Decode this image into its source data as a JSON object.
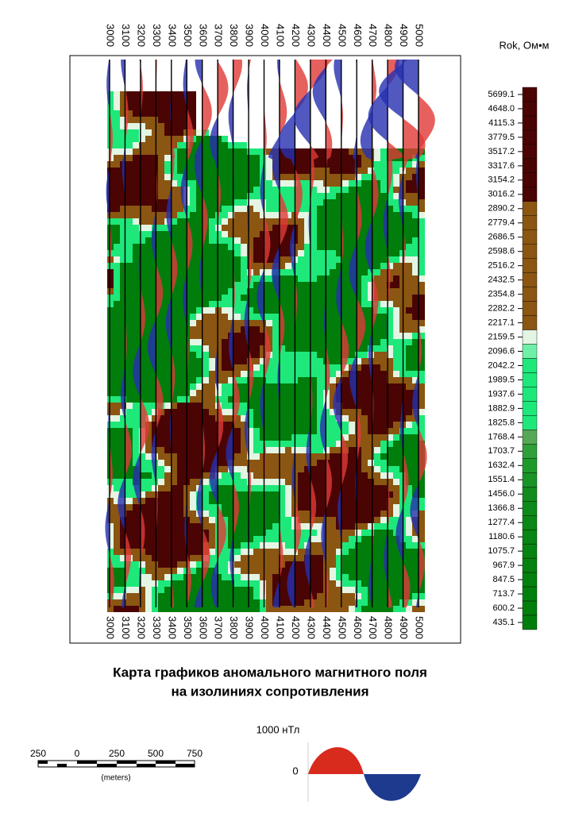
{
  "map": {
    "profiles": [
      "3000",
      "3100",
      "3200",
      "3300",
      "3400",
      "3500",
      "3600",
      "3700",
      "3800",
      "3900",
      "4000",
      "4100",
      "4200",
      "4300",
      "4400",
      "4500",
      "4600",
      "4700",
      "4800",
      "4900",
      "5000"
    ],
    "legend": {
      "title": "Rok, Ом•м",
      "items": [
        {
          "label": "5699.1",
          "color": "#4a0404"
        },
        {
          "label": "4648.0",
          "color": "#4a0404"
        },
        {
          "label": "4115.3",
          "color": "#4a0404"
        },
        {
          "label": "3779.5",
          "color": "#4a0404"
        },
        {
          "label": "3517.2",
          "color": "#4a0404"
        },
        {
          "label": "3317.6",
          "color": "#4a0404"
        },
        {
          "label": "3154.2",
          "color": "#4a0404"
        },
        {
          "label": "3016.2",
          "color": "#4a0404"
        },
        {
          "label": "2890.2",
          "color": "#8b5611"
        },
        {
          "label": "2779.4",
          "color": "#8b5611"
        },
        {
          "label": "2686.5",
          "color": "#8b5611"
        },
        {
          "label": "2598.6",
          "color": "#8b5611"
        },
        {
          "label": "2516.2",
          "color": "#8b5611"
        },
        {
          "label": "2432.5",
          "color": "#8b5611"
        },
        {
          "label": "2354.8",
          "color": "#8b5611"
        },
        {
          "label": "2282.2",
          "color": "#8b5611"
        },
        {
          "label": "2217.1",
          "color": "#8b5611"
        },
        {
          "label": "2159.5",
          "color": "#e4f5e4"
        },
        {
          "label": "2096.6",
          "color": "#6ff0a8"
        },
        {
          "label": "2042.2",
          "color": "#1ee87a"
        },
        {
          "label": "1989.5",
          "color": "#1ee87a"
        },
        {
          "label": "1937.6",
          "color": "#1ee87a"
        },
        {
          "label": "1882.9",
          "color": "#1ee87a"
        },
        {
          "label": "1825.8",
          "color": "#1ee87a"
        },
        {
          "label": "1768.4",
          "color": "#55a855"
        },
        {
          "label": "1703.7",
          "color": "#2f9f3a"
        },
        {
          "label": "1632.4",
          "color": "#1e9a2a"
        },
        {
          "label": "1551.4",
          "color": "#1a9326"
        },
        {
          "label": "1456.0",
          "color": "#128b1e"
        },
        {
          "label": "1366.8",
          "color": "#0d8a1a"
        },
        {
          "label": "1277.4",
          "color": "#0a8716"
        },
        {
          "label": "1180.6",
          "color": "#088514"
        },
        {
          "label": "1075.7",
          "color": "#068312"
        },
        {
          "label": "967.9",
          "color": "#058110"
        },
        {
          "label": "847.5",
          "color": "#04800f"
        },
        {
          "label": "713.7",
          "color": "#037f0e"
        },
        {
          "label": "600.2",
          "color": "#027e0d"
        },
        {
          "label": "435.1",
          "color": "#017d0c"
        }
      ]
    },
    "title": [
      "Карта графиков аномального магнитного поля",
      "на изолиниях сопротивления"
    ],
    "scale_bar": {
      "labels": [
        "250",
        "0",
        "250",
        "500",
        "750"
      ],
      "unit": "(meters)"
    },
    "anomaly_key": {
      "amplitude": "1000 нТл",
      "zero": "0"
    }
  }
}
